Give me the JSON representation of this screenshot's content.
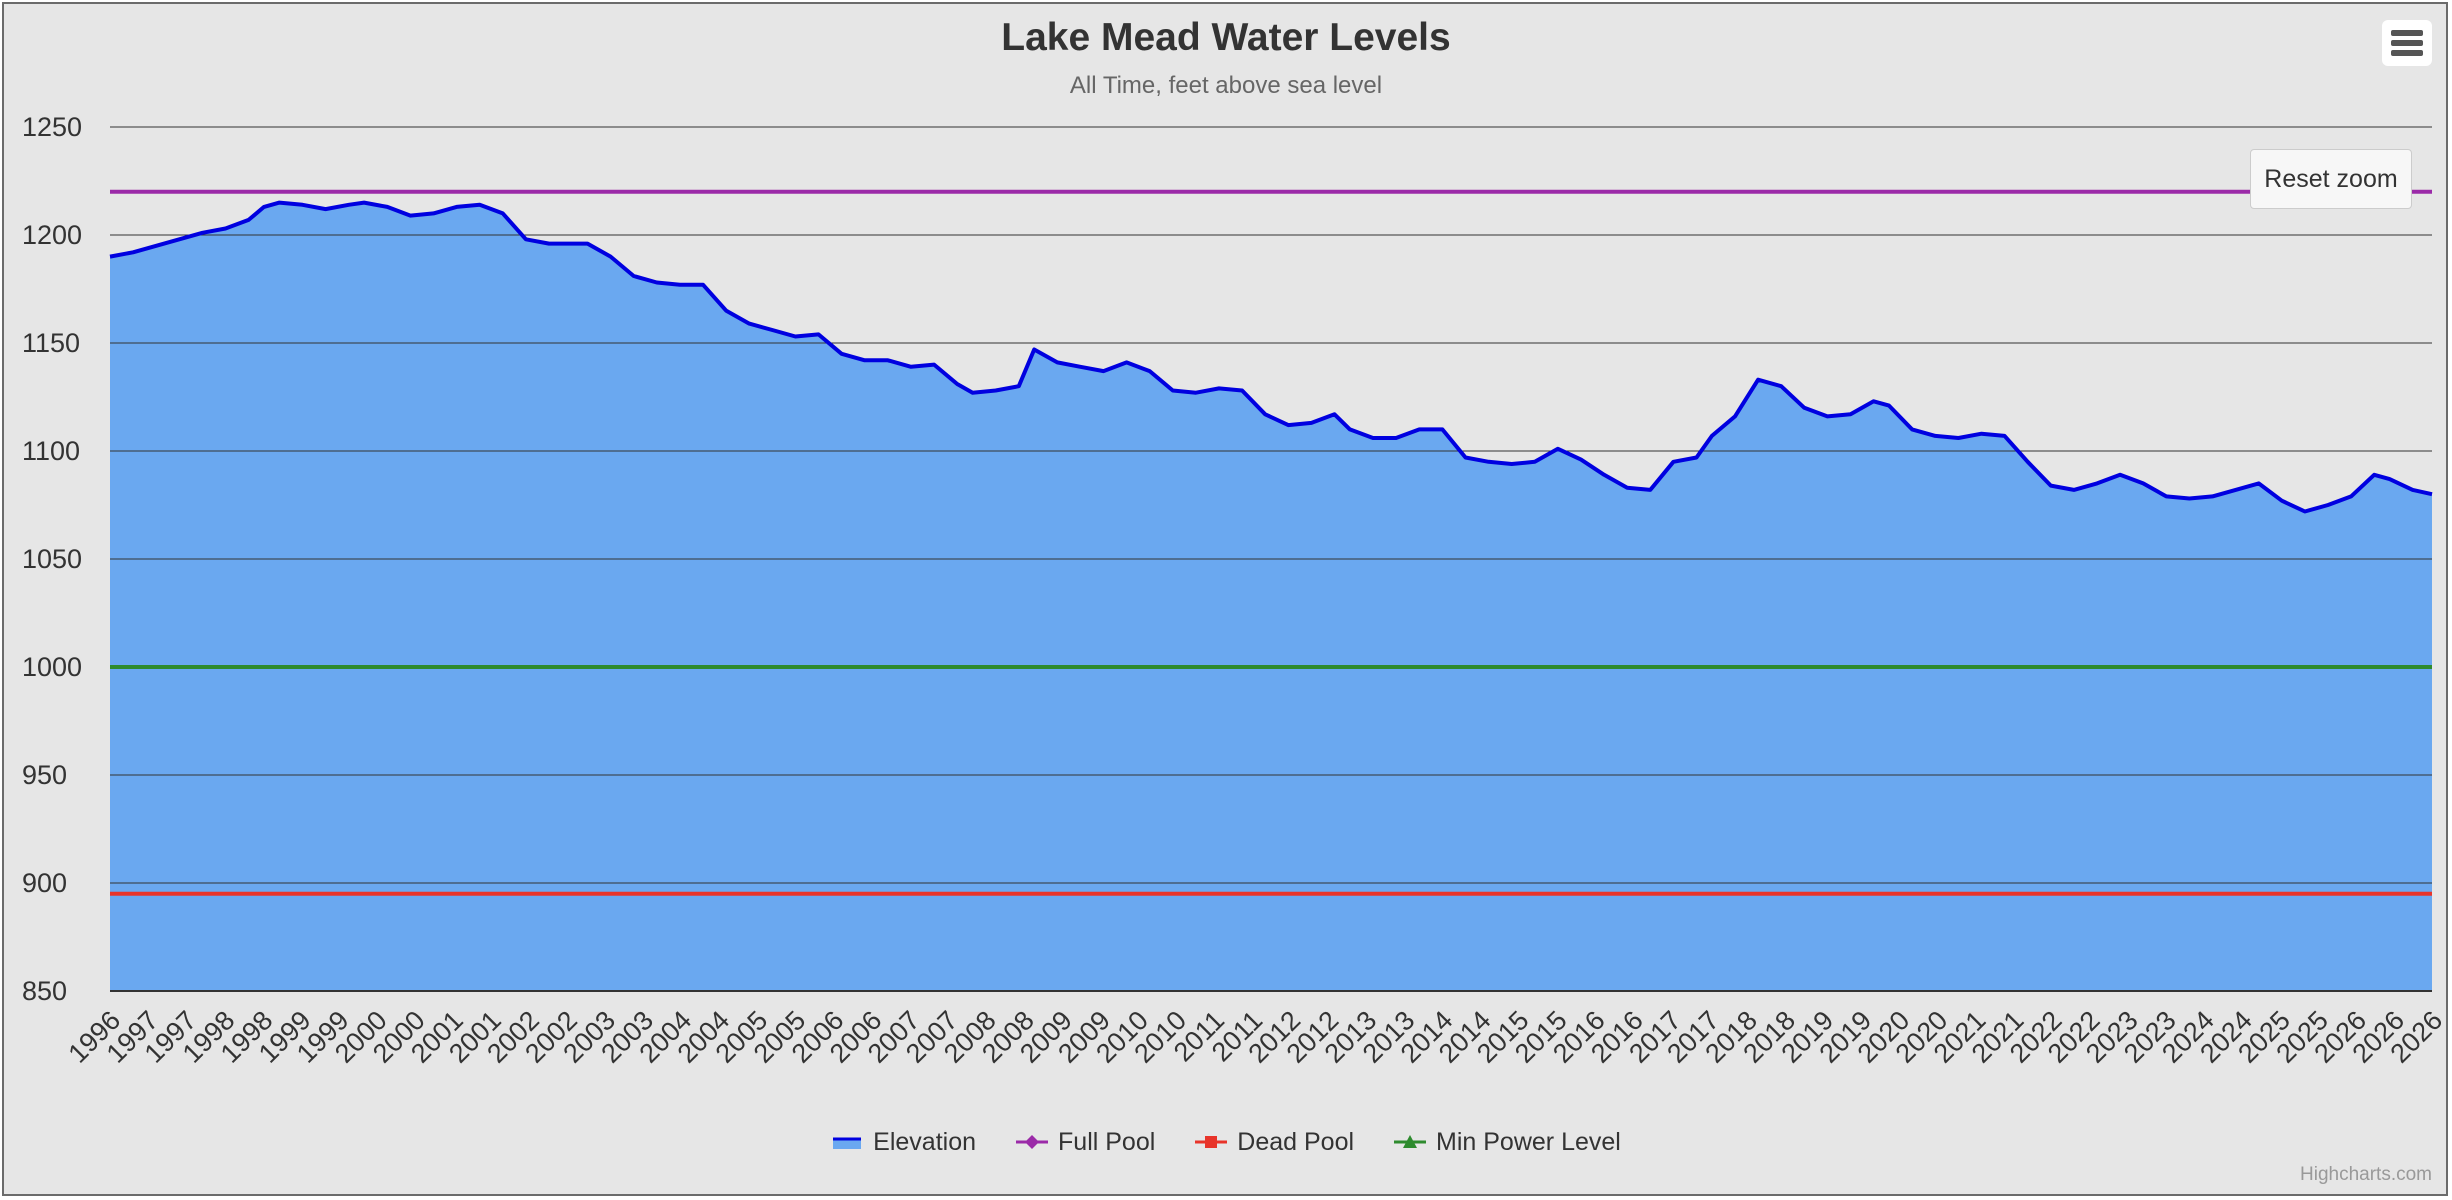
{
  "chart_data": {
    "type": "area",
    "title": "Lake Mead Water Levels",
    "subtitle": "All Time, feet above sea level",
    "ylim": [
      850,
      1250
    ],
    "yticks": [
      850,
      900,
      950,
      1000,
      1050,
      1100,
      1150,
      1200,
      1250
    ],
    "xlim": [
      1996.0,
      2026.15
    ],
    "xtick_labels": [
      "1996",
      "1997",
      "1997",
      "1998",
      "1998",
      "1999",
      "1999",
      "2000",
      "2000",
      "2001",
      "2001",
      "2002",
      "2002",
      "2003",
      "2003",
      "2004",
      "2004",
      "2005",
      "2005",
      "2006",
      "2006",
      "2007",
      "2007",
      "2008",
      "2008",
      "2009",
      "2009",
      "2010",
      "2010",
      "2011",
      "2011",
      "2012",
      "2012",
      "2013",
      "2013",
      "2014",
      "2014",
      "2015",
      "2015",
      "2016",
      "2016",
      "2017",
      "2017",
      "2018",
      "2018",
      "2019",
      "2019",
      "2020",
      "2020",
      "2021",
      "2021",
      "2022",
      "2022",
      "2023",
      "2023",
      "2024",
      "2024",
      "2025",
      "2025",
      "2026",
      "2026",
      "2026"
    ],
    "grid": true,
    "legend_position": "bottom-center",
    "series": [
      {
        "name": "Elevation",
        "type": "area",
        "color": "#0000e0",
        "fill": "#6aa8f0",
        "points": [
          [
            1996.0,
            1190
          ],
          [
            1996.3,
            1192
          ],
          [
            1996.6,
            1195
          ],
          [
            1996.9,
            1198
          ],
          [
            1997.2,
            1201
          ],
          [
            1997.5,
            1203
          ],
          [
            1997.8,
            1207
          ],
          [
            1998.0,
            1213
          ],
          [
            1998.2,
            1215
          ],
          [
            1998.5,
            1214
          ],
          [
            1998.8,
            1212
          ],
          [
            1999.1,
            1214
          ],
          [
            1999.3,
            1215
          ],
          [
            1999.6,
            1213
          ],
          [
            1999.9,
            1209
          ],
          [
            2000.2,
            1210
          ],
          [
            2000.5,
            1213
          ],
          [
            2000.8,
            1214
          ],
          [
            2001.1,
            1210
          ],
          [
            2001.4,
            1198
          ],
          [
            2001.7,
            1196
          ],
          [
            2002.0,
            1196
          ],
          [
            2002.2,
            1196
          ],
          [
            2002.5,
            1190
          ],
          [
            2002.8,
            1181
          ],
          [
            2003.1,
            1178
          ],
          [
            2003.4,
            1177
          ],
          [
            2003.7,
            1177
          ],
          [
            2004.0,
            1165
          ],
          [
            2004.3,
            1159
          ],
          [
            2004.6,
            1156
          ],
          [
            2004.9,
            1153
          ],
          [
            2005.2,
            1154
          ],
          [
            2005.5,
            1145
          ],
          [
            2005.8,
            1142
          ],
          [
            2006.1,
            1142
          ],
          [
            2006.4,
            1139
          ],
          [
            2006.7,
            1140
          ],
          [
            2007.0,
            1131
          ],
          [
            2007.2,
            1127
          ],
          [
            2007.5,
            1128
          ],
          [
            2007.8,
            1130
          ],
          [
            2008.0,
            1147
          ],
          [
            2008.3,
            1141
          ],
          [
            2008.6,
            1139
          ],
          [
            2008.9,
            1137
          ],
          [
            2009.2,
            1141
          ],
          [
            2009.5,
            1137
          ],
          [
            2009.8,
            1128
          ],
          [
            2010.1,
            1127
          ],
          [
            2010.4,
            1129
          ],
          [
            2010.7,
            1128
          ],
          [
            2011.0,
            1117
          ],
          [
            2011.3,
            1112
          ],
          [
            2011.6,
            1113
          ],
          [
            2011.9,
            1117
          ],
          [
            2012.1,
            1110
          ],
          [
            2012.4,
            1106
          ],
          [
            2012.7,
            1106
          ],
          [
            2013.0,
            1110
          ],
          [
            2013.3,
            1110
          ],
          [
            2013.6,
            1097
          ],
          [
            2013.9,
            1095
          ],
          [
            2014.2,
            1094
          ],
          [
            2014.5,
            1095
          ],
          [
            2014.8,
            1101
          ],
          [
            2015.1,
            1096
          ],
          [
            2015.4,
            1089
          ],
          [
            2015.7,
            1083
          ],
          [
            2016.0,
            1082
          ],
          [
            2016.3,
            1095
          ],
          [
            2016.6,
            1097
          ],
          [
            2016.8,
            1107
          ],
          [
            2017.1,
            1116
          ],
          [
            2017.4,
            1133
          ],
          [
            2017.7,
            1130
          ],
          [
            2018.0,
            1120
          ],
          [
            2018.3,
            1116
          ],
          [
            2018.6,
            1117
          ],
          [
            2018.9,
            1123
          ],
          [
            2019.1,
            1121
          ],
          [
            2019.4,
            1110
          ],
          [
            2019.7,
            1107
          ],
          [
            2020.0,
            1106
          ],
          [
            2020.3,
            1108
          ],
          [
            2020.6,
            1107
          ],
          [
            2020.9,
            1095
          ],
          [
            2021.2,
            1084
          ],
          [
            2021.5,
            1082
          ],
          [
            2021.8,
            1085
          ],
          [
            2022.1,
            1089
          ],
          [
            2022.4,
            1085
          ],
          [
            2022.7,
            1079
          ],
          [
            2023.0,
            1078
          ],
          [
            2023.3,
            1079
          ],
          [
            2023.6,
            1082
          ],
          [
            2023.9,
            1085
          ],
          [
            2024.2,
            1077
          ],
          [
            2024.5,
            1072
          ],
          [
            2024.8,
            1075
          ],
          [
            2025.1,
            1079
          ],
          [
            2025.4,
            1089
          ],
          [
            2025.6,
            1087
          ],
          [
            2025.9,
            1082
          ],
          [
            2026.15,
            1080
          ]
        ]
      },
      {
        "name": "Full Pool",
        "type": "line",
        "color": "#9b2aa8",
        "value": 1220
      },
      {
        "name": "Dead Pool",
        "type": "line",
        "color": "#e8342a",
        "value": 895
      },
      {
        "name": "Min Power Level",
        "type": "line",
        "color": "#2e8b2e",
        "value": 1000
      }
    ]
  },
  "ui": {
    "reset_zoom_label": "Reset zoom",
    "credits": "Highcharts.com"
  }
}
